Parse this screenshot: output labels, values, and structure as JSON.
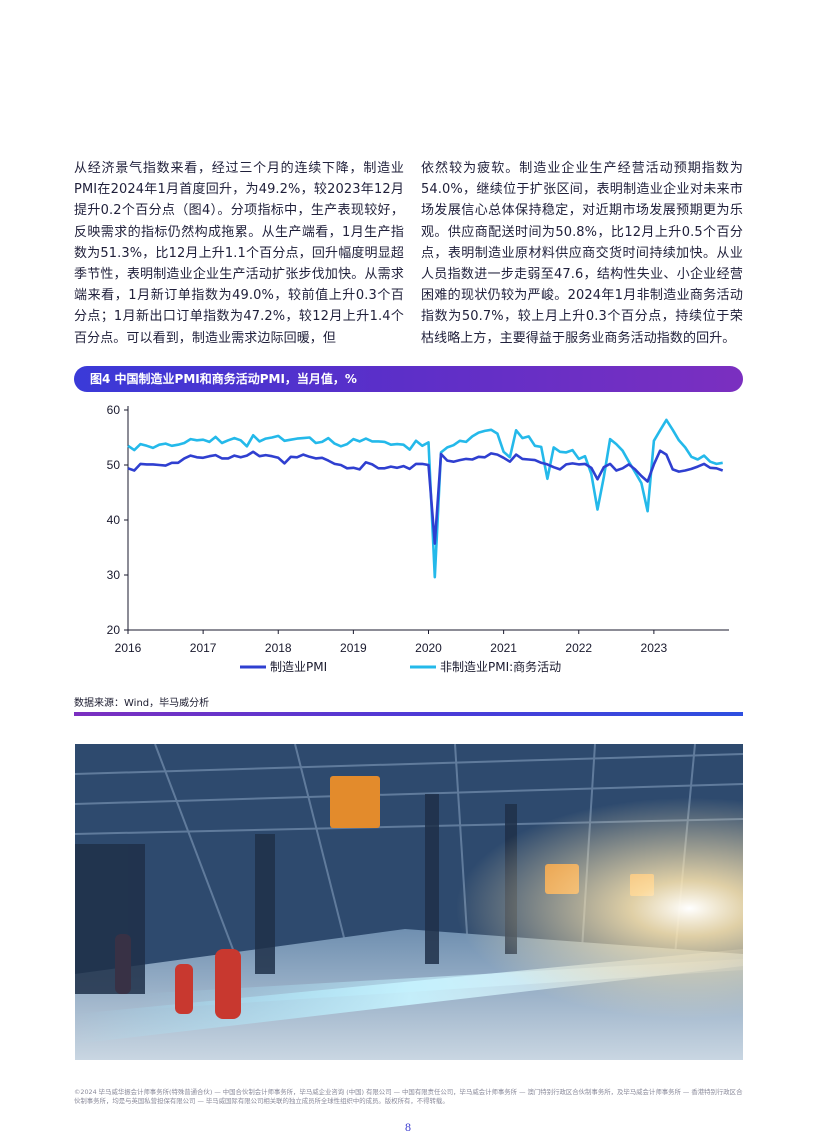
{
  "text": {
    "left": "从经济景气指数来看，经过三个月的连续下降，制造业PMI在2024年1月首度回升，为49.2%，较2023年12月提升0.2个百分点（图4）。分项指标中，生产表现较好，反映需求的指标仍然构成拖累。从生产端看，1月生产指数为51.3%，比12月上升1.1个百分点，回升幅度明显超季节性，表明制造业企业生产活动扩张步伐加快。从需求端来看，1月新订单指数为49.0%，较前值上升0.3个百分点；1月新出口订单指数为47.2%，较12月上升1.4个百分点。可以看到，制造业需求边际回暖，但",
    "right": "依然较为疲软。制造业企业生产经营活动预期指数为54.0%，继续位于扩张区间，表明制造业企业对未来市场发展信心总体保持稳定，对近期市场发展预期更为乐观。供应商配送时间为50.8%，比12月上升0.5个百分点，表明制造业原材料供应商交货时间持续加快。从业人员指数进一步走弱至47.6，结构性失业、小企业经营困难的现状仍较为严峻。2024年1月非制造业商务活动指数为50.7%，较上月上升0.3个百分点，持续位于荣枯线略上方，主要得益于服务业商务活动指数的回升。"
  },
  "figure": {
    "title": "图4 中国制造业PMI和商务活动PMI，当月值，%",
    "source": "数据来源：Wind，毕马威分析"
  },
  "chart_data": {
    "type": "line",
    "title": "图4 中国制造业PMI和商务活动PMI，当月值，%",
    "xlabel": "",
    "ylabel": "",
    "ylim": [
      20,
      60
    ],
    "yticks": [
      "60",
      "50",
      "40",
      "30",
      "20"
    ],
    "xticks": [
      "2016",
      "2017",
      "2018",
      "2019",
      "2020",
      "2021",
      "2022",
      "2023"
    ],
    "x_start": "2016-01",
    "frequency": "monthly",
    "legend_position": "bottom",
    "grid": false,
    "series": [
      {
        "name": "制造业PMI",
        "color": "#2f3fd0",
        "values": [
          49.4,
          49.0,
          50.2,
          50.1,
          50.1,
          50.0,
          49.9,
          50.4,
          50.4,
          51.2,
          51.7,
          51.4,
          51.3,
          51.6,
          51.8,
          51.2,
          51.2,
          51.7,
          51.4,
          51.7,
          52.4,
          51.6,
          51.8,
          51.6,
          51.3,
          50.3,
          51.5,
          51.4,
          51.9,
          51.5,
          51.2,
          51.3,
          50.8,
          50.2,
          50.0,
          49.4,
          49.5,
          49.2,
          50.5,
          50.1,
          49.4,
          49.4,
          49.7,
          49.5,
          49.8,
          49.3,
          50.2,
          50.2,
          50.0,
          35.7,
          52.0,
          50.8,
          50.6,
          50.9,
          51.1,
          51.0,
          51.5,
          51.4,
          52.1,
          51.9,
          51.3,
          50.6,
          51.9,
          51.1,
          51.0,
          50.9,
          50.4,
          50.1,
          49.6,
          49.2,
          50.1,
          50.3,
          50.1,
          50.2,
          49.5,
          47.4,
          49.6,
          50.2,
          49.0,
          49.4,
          50.1,
          49.2,
          48.0,
          47.0,
          50.1,
          52.6,
          51.9,
          49.2,
          48.8,
          49.0,
          49.3,
          49.7,
          50.2,
          49.5,
          49.4,
          49.0
        ]
      },
      {
        "name": "非制造业PMI:商务活动",
        "color": "#24b9ea",
        "values": [
          53.5,
          52.7,
          53.8,
          53.5,
          53.1,
          53.7,
          53.9,
          53.5,
          53.7,
          54.0,
          54.7,
          54.5,
          54.6,
          54.2,
          55.1,
          54.0,
          54.5,
          54.9,
          54.5,
          53.4,
          55.4,
          54.3,
          54.8,
          55.0,
          55.3,
          54.4,
          54.6,
          54.8,
          54.9,
          55.0,
          54.0,
          54.2,
          54.9,
          53.9,
          53.4,
          53.8,
          54.7,
          54.3,
          54.8,
          54.3,
          54.3,
          54.2,
          53.7,
          53.8,
          53.7,
          52.8,
          54.4,
          53.5,
          54.1,
          29.6,
          52.3,
          53.2,
          53.6,
          54.4,
          54.2,
          55.2,
          55.9,
          56.2,
          56.4,
          55.7,
          52.4,
          51.4,
          56.3,
          54.9,
          55.2,
          53.5,
          53.3,
          47.5,
          53.2,
          52.4,
          52.3,
          52.7,
          51.1,
          51.6,
          48.4,
          41.9,
          47.8,
          54.7,
          53.8,
          52.6,
          50.6,
          48.7,
          46.7,
          41.6,
          54.4,
          56.3,
          58.2,
          56.4,
          54.5,
          53.2,
          51.5,
          51.0,
          51.7,
          50.6,
          50.2,
          50.4
        ]
      }
    ]
  },
  "footer": {
    "legal": "©2024 毕马威华振会计师事务所(特殊普通合伙) — 中国合伙制会计师事务所，毕马威企业咨询 (中国) 有限公司 — 中国有限责任公司，毕马威会计师事务所 — 澳门特别行政区合伙制事务所，及毕马威会计师事务所 — 香港特别行政区合伙制事务所，均是与英国私营担保有限公司 — 毕马威国际有限公司相关联的独立成员所全球性组织中的成员。版权所有，不得转载。",
    "page_number": "8"
  }
}
